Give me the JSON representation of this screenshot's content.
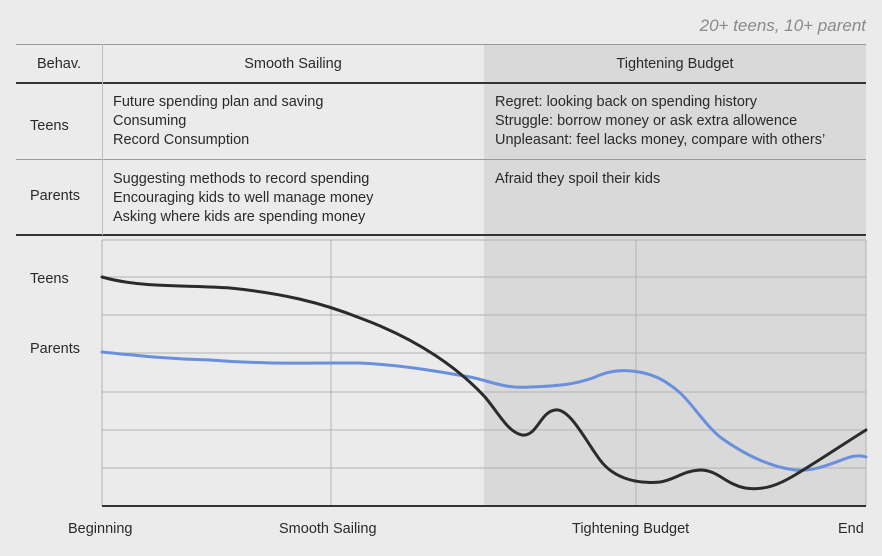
{
  "note": "20+ teens, 10+ parent",
  "table": {
    "corner": "Behav.",
    "phases": [
      "Smooth Sailing",
      "Tightening Budget"
    ],
    "rows": [
      {
        "label": "Teens",
        "smooth": [
          "Future spending plan and saving",
          "Consuming",
          "Record Consumption"
        ],
        "tight": [
          "Regret: looking back on spending history",
          "Struggle: borrow money or ask extra allowence",
          "Unpleasant: feel lacks money, compare with others’"
        ]
      },
      {
        "label": "Parents",
        "smooth": [
          "Suggesting methods to record spending",
          "Encouraging kids to well manage money",
          "Asking where kids are spending money"
        ],
        "tight": [
          "Afraid they spoil their kids"
        ]
      }
    ]
  },
  "chart": {
    "y_labels": [
      "Teens",
      "Parents"
    ],
    "x_labels": [
      "Beginning",
      "Smooth Sailing",
      "Tightening Budget",
      "End"
    ]
  },
  "colors": {
    "teens": "#2b2b2b",
    "parents": "#6a8fdc",
    "shade": "#d9d9d9"
  }
}
